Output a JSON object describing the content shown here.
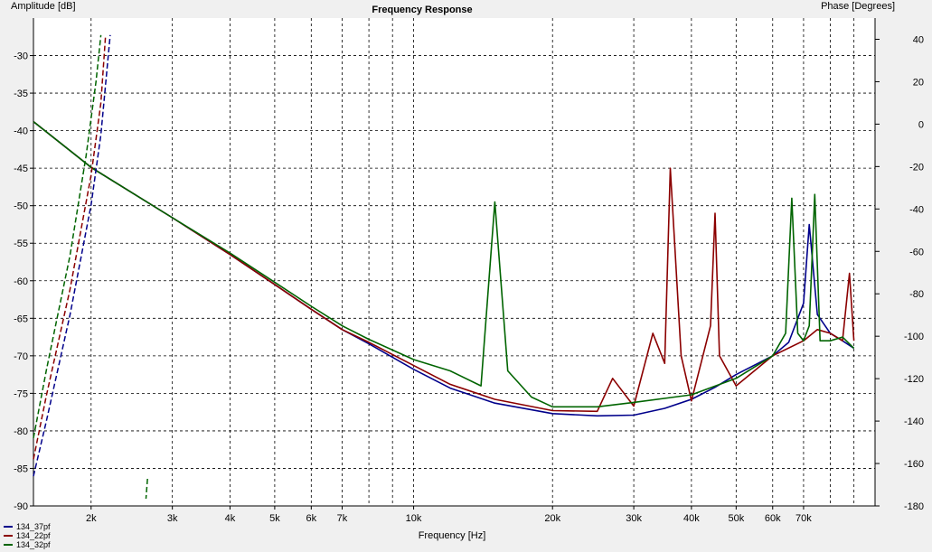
{
  "chart_data": {
    "type": "line",
    "title": "Frequency Response",
    "xlabel": "Frequency [Hz]",
    "ylabel": "Amplitude [dB]",
    "y2label": "Phase [Degrees]",
    "xscale": "log",
    "xlim": [
      1500,
      100000
    ],
    "ylim": [
      -90,
      -25
    ],
    "y2lim": [
      -180,
      50
    ],
    "xticks": [
      {
        "v": 2000,
        "label": "2k"
      },
      {
        "v": 3000,
        "label": "3k"
      },
      {
        "v": 4000,
        "label": "4k"
      },
      {
        "v": 5000,
        "label": "5k"
      },
      {
        "v": 6000,
        "label": "6k"
      },
      {
        "v": 7000,
        "label": "7k"
      },
      {
        "v": 10000,
        "label": "10k"
      },
      {
        "v": 20000,
        "label": "20k"
      },
      {
        "v": 30000,
        "label": "30k"
      },
      {
        "v": 40000,
        "label": "40k"
      },
      {
        "v": 50000,
        "label": "50k"
      },
      {
        "v": 60000,
        "label": "60k"
      },
      {
        "v": 70000,
        "label": "70k"
      }
    ],
    "yticks": [
      -30,
      -35,
      -40,
      -45,
      -50,
      -55,
      -60,
      -65,
      -70,
      -75,
      -80,
      -85,
      -90
    ],
    "y2ticks": [
      40,
      20,
      0,
      -20,
      -40,
      -60,
      -80,
      -100,
      -120,
      -140,
      -160,
      -180
    ],
    "grid": true,
    "legend_position": "bottom-left",
    "series": [
      {
        "name": "134_37pf",
        "color": "#00008b",
        "axis": "amplitude",
        "x": [
          1500,
          2000,
          3000,
          4000,
          5000,
          6000,
          7000,
          8000,
          10000,
          12000,
          15000,
          20000,
          25000,
          30000,
          35000,
          40000,
          45000,
          50000,
          60000,
          65000,
          70000,
          72000,
          75000,
          80000,
          85000,
          90000
        ],
        "y": [
          -38.8,
          -44.9,
          -51.6,
          -56.5,
          -60.5,
          -63.8,
          -66.5,
          -68.4,
          -71.8,
          -74.3,
          -76.3,
          -77.7,
          -78.0,
          -77.9,
          -77.0,
          -75.8,
          -74.2,
          -72.5,
          -70.0,
          -68.2,
          -63.0,
          -52.5,
          -64.5,
          -67.0,
          -68.0,
          -69.0
        ]
      },
      {
        "name": "134_22pf",
        "color": "#8b0000",
        "axis": "amplitude",
        "x": [
          1500,
          2000,
          3000,
          4000,
          5000,
          6000,
          7000,
          8000,
          10000,
          12000,
          15000,
          20000,
          25000,
          27000,
          30000,
          33000,
          35000,
          36000,
          38000,
          40000,
          44000,
          45000,
          46000,
          50000,
          60000,
          70000,
          75000,
          80000,
          85000,
          88000,
          90000
        ],
        "y": [
          -38.8,
          -44.9,
          -51.6,
          -56.5,
          -60.5,
          -63.8,
          -66.5,
          -68.2,
          -71.3,
          -73.8,
          -75.8,
          -77.3,
          -77.4,
          -73.0,
          -76.7,
          -67.0,
          -71.0,
          -45.0,
          -70.0,
          -76.0,
          -66.0,
          -51.0,
          -70.0,
          -74.0,
          -70.0,
          -68.0,
          -66.5,
          -67.0,
          -68.0,
          -59.0,
          -68.0
        ]
      },
      {
        "name": "134_32pf",
        "color": "#006400",
        "axis": "amplitude",
        "x": [
          1500,
          2000,
          3000,
          4000,
          5000,
          6000,
          7000,
          8000,
          10000,
          12000,
          14000,
          15000,
          16000,
          18000,
          20000,
          25000,
          30000,
          40000,
          50000,
          60000,
          64000,
          66000,
          68000,
          70000,
          72000,
          74000,
          76000,
          80000,
          85000,
          90000
        ],
        "y": [
          -38.8,
          -44.9,
          -51.6,
          -56.3,
          -60.2,
          -63.4,
          -66.0,
          -67.8,
          -70.5,
          -72.0,
          -74.0,
          -49.5,
          -72.0,
          -75.5,
          -76.8,
          -76.8,
          -76.2,
          -75.2,
          -73.0,
          -70.0,
          -67.0,
          -49.0,
          -67.0,
          -68.0,
          -66.0,
          -48.5,
          -68.0,
          -68.0,
          -67.5,
          -69.0
        ]
      },
      {
        "name": "134_37pf phase",
        "color": "#00008b",
        "axis": "phase",
        "dashed": true,
        "x": [
          1500,
          1600,
          1800,
          2000,
          2100,
          2200
        ],
        "y": [
          -166,
          -140,
          -90,
          -38,
          -5,
          42
        ]
      },
      {
        "name": "134_22pf phase",
        "color": "#8b0000",
        "axis": "phase",
        "dashed": true,
        "x": [
          1500,
          1600,
          1800,
          2000,
          2100,
          2150
        ],
        "y": [
          -158,
          -128,
          -78,
          -24,
          10,
          42
        ]
      },
      {
        "name": "134_32pf phase",
        "color": "#006400",
        "axis": "phase",
        "dashed": true,
        "x": [
          1500,
          1600,
          1800,
          1950,
          2050,
          2100
        ],
        "y": [
          -148,
          -116,
          -62,
          -15,
          20,
          42
        ]
      }
    ]
  },
  "legend": [
    {
      "label": "134_37pf",
      "color": "#00008b"
    },
    {
      "label": "134_22pf",
      "color": "#8b0000"
    },
    {
      "label": "134_32pf",
      "color": "#006400"
    }
  ]
}
